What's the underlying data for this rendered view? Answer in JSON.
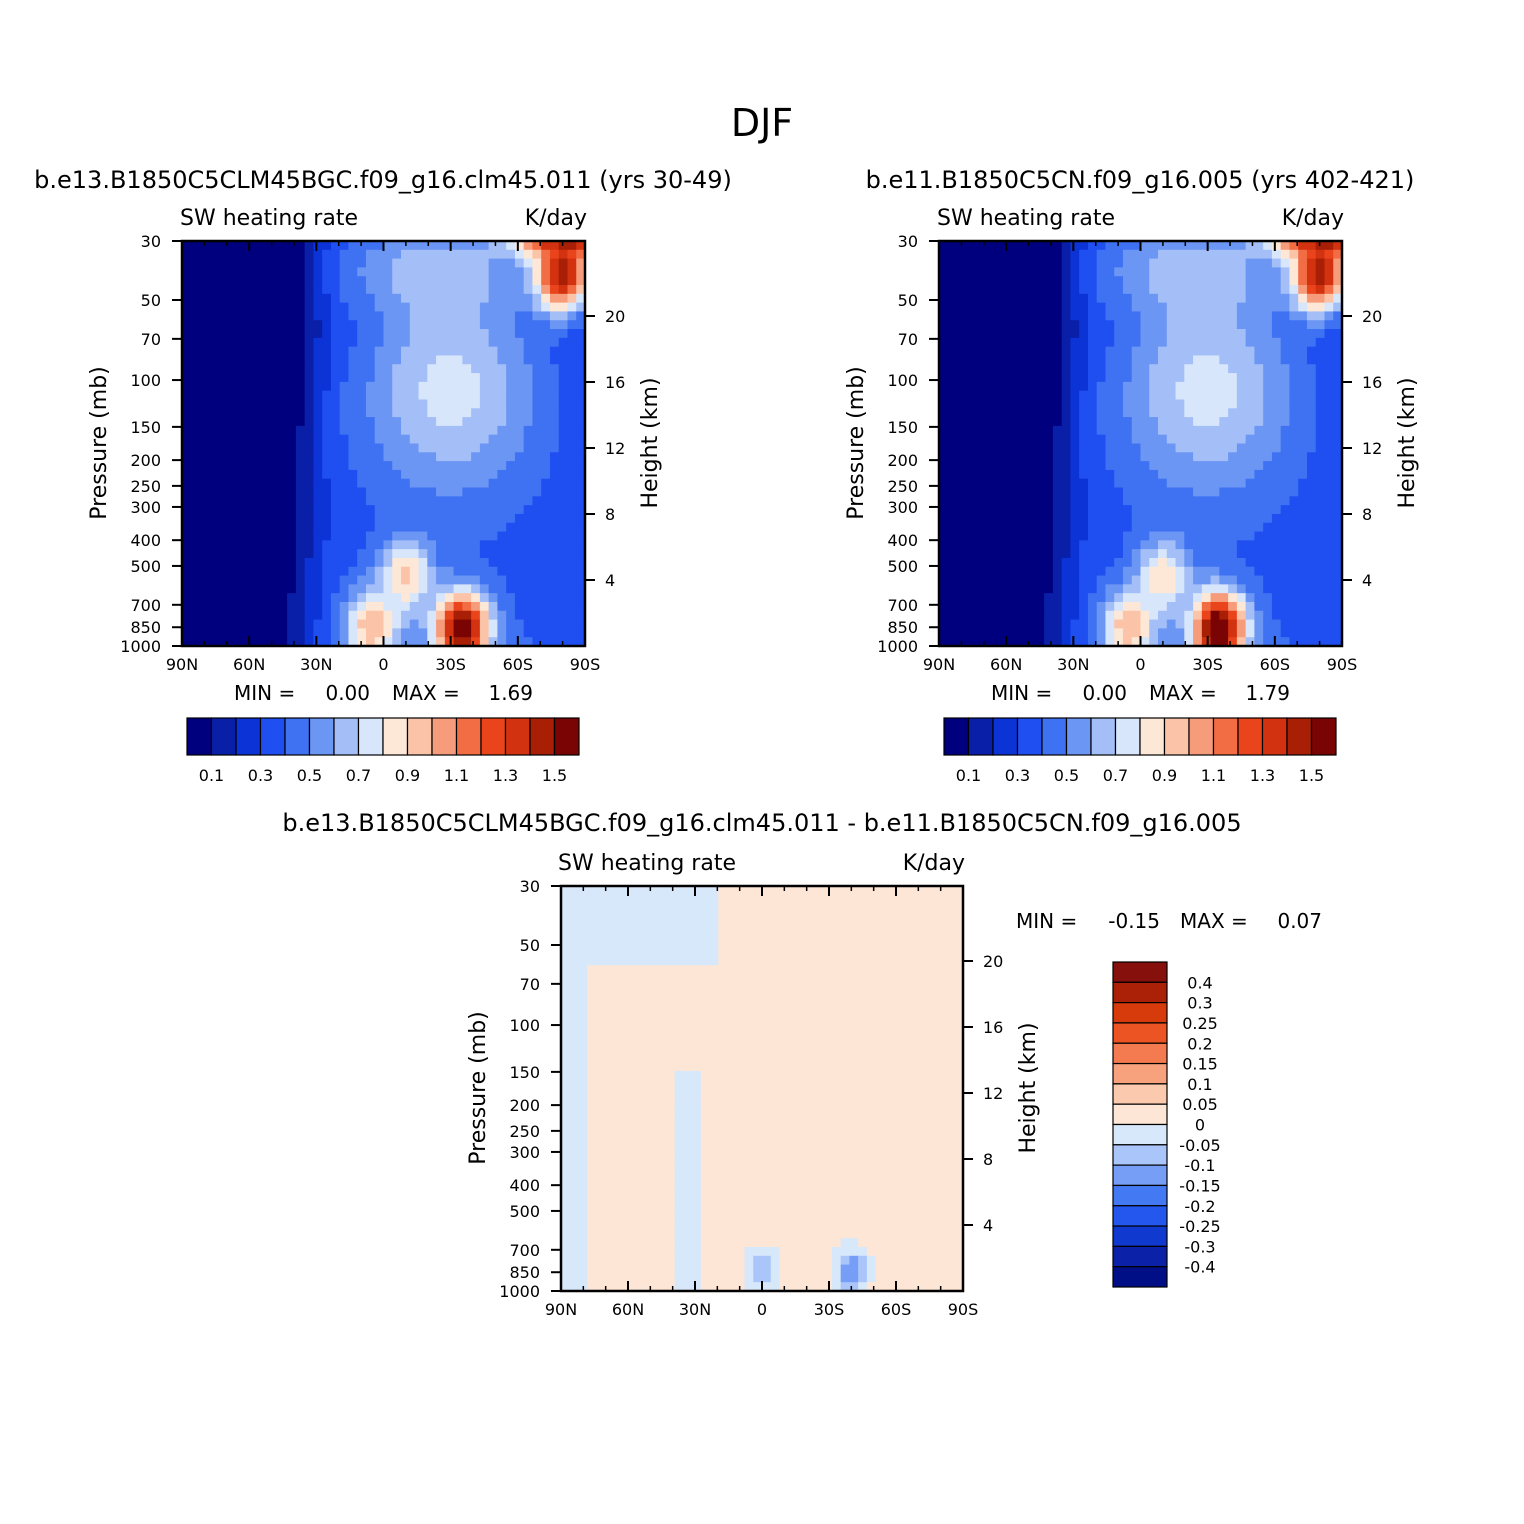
{
  "figure": {
    "title": "DJF",
    "colors": {
      "axis": "#000000",
      "background": "#ffffff"
    }
  },
  "chart_data": [
    {
      "type": "heatmap",
      "title": "b.e13.B1850C5CLM45BGC.f09_g16.clm45.011 (yrs 30-49)",
      "subtitle_left": "SW heating rate",
      "subtitle_right": "K/day",
      "xlabel": "",
      "ylabel": "Pressure (mb)",
      "ylabel_right": "Height (km)",
      "x_ticks": [
        "90N",
        "60N",
        "30N",
        "0",
        "30S",
        "60S",
        "90S"
      ],
      "y_ticks": [
        "30",
        "50",
        "70",
        "100",
        "150",
        "200",
        "250",
        "300",
        "400",
        "500",
        "700",
        "850",
        "1000"
      ],
      "y_right_ticks": [
        "20",
        "16",
        "12",
        "8",
        "4"
      ],
      "y_scale": "log",
      "min_label": "MIN =",
      "min_value": "0.00",
      "max_label": "MAX =",
      "max_value": "1.69",
      "colorbar_labels": [
        "0.1",
        "0.3",
        "0.5",
        "0.7",
        "0.9",
        "1.1",
        "1.3",
        "1.5"
      ],
      "colorbar_placement": "bottom",
      "features": [
        {
          "lat": 5,
          "p": 850,
          "value": 1.0
        },
        {
          "lat": -35,
          "p": 860,
          "value": 1.6
        },
        {
          "lat": -10,
          "p": 550,
          "value": 0.95
        },
        {
          "lat": 70,
          "p": 500,
          "value": 0.02
        },
        {
          "lat": -80,
          "p": 40,
          "value": 1.5
        }
      ]
    },
    {
      "type": "heatmap",
      "title": "b.e11.B1850C5CN.f09_g16.005 (yrs 402-421)",
      "subtitle_left": "SW heating rate",
      "subtitle_right": "K/day",
      "xlabel": "",
      "ylabel": "Pressure (mb)",
      "ylabel_right": "Height (km)",
      "x_ticks": [
        "90N",
        "60N",
        "30N",
        "0",
        "30S",
        "60S",
        "90S"
      ],
      "y_ticks": [
        "30",
        "50",
        "70",
        "100",
        "150",
        "200",
        "250",
        "300",
        "400",
        "500",
        "700",
        "850",
        "1000"
      ],
      "y_right_ticks": [
        "20",
        "16",
        "12",
        "8",
        "4"
      ],
      "y_scale": "log",
      "min_label": "MIN =",
      "min_value": "0.00",
      "max_label": "MAX =",
      "max_value": "1.79",
      "colorbar_labels": [
        "0.1",
        "0.3",
        "0.5",
        "0.7",
        "0.9",
        "1.1",
        "1.3",
        "1.5"
      ],
      "colorbar_placement": "bottom",
      "features": [
        {
          "lat": 5,
          "p": 850,
          "value": 1.0
        },
        {
          "lat": -35,
          "p": 860,
          "value": 1.7
        },
        {
          "lat": -10,
          "p": 550,
          "value": 0.9
        },
        {
          "lat": 70,
          "p": 500,
          "value": 0.02
        },
        {
          "lat": -80,
          "p": 40,
          "value": 1.5
        }
      ]
    },
    {
      "type": "heatmap",
      "title": "b.e13.B1850C5CLM45BGC.f09_g16.clm45.011 - b.e11.B1850C5CN.f09_g16.005",
      "subtitle_left": "SW heating rate",
      "subtitle_right": "K/day",
      "xlabel": "",
      "ylabel": "Pressure (mb)",
      "ylabel_right": "Height (km)",
      "x_ticks": [
        "90N",
        "60N",
        "30N",
        "0",
        "30S",
        "60S",
        "90S"
      ],
      "y_ticks": [
        "30",
        "50",
        "70",
        "100",
        "150",
        "200",
        "250",
        "300",
        "400",
        "500",
        "700",
        "850",
        "1000"
      ],
      "y_right_ticks": [
        "20",
        "16",
        "12",
        "8",
        "4"
      ],
      "y_scale": "log",
      "min_label": "MIN =",
      "min_value": "-0.15",
      "max_label": "MAX =",
      "max_value": "0.07",
      "colorbar_labels": [
        "0.4",
        "0.3",
        "0.25",
        "0.2",
        "0.15",
        "0.1",
        "0.05",
        "0",
        "-0.05",
        "-0.1",
        "-0.15",
        "-0.2",
        "-0.25",
        "-0.3",
        "-0.4"
      ],
      "colorbar_placement": "right",
      "features": [
        {
          "lat": -40,
          "p": 840,
          "value": -0.15
        },
        {
          "lat": 0,
          "p": 850,
          "value": -0.1
        },
        {
          "lat": -80,
          "p": 250,
          "value": 0.05
        },
        {
          "lat": 0,
          "p": 500,
          "value": 0.03
        }
      ]
    }
  ]
}
